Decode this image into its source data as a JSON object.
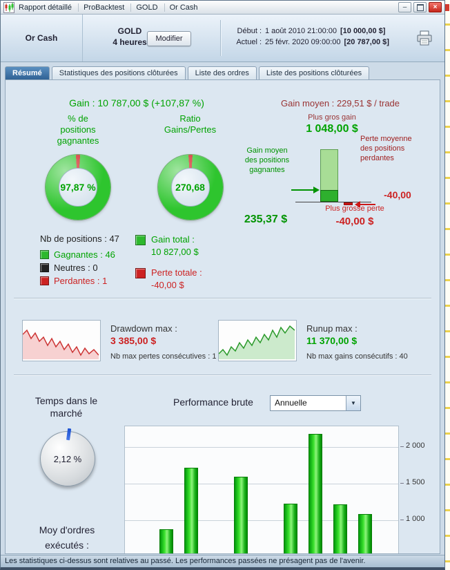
{
  "window": {
    "title_parts": [
      "Rapport détaillé",
      "ProBacktest",
      "GOLD",
      "Or Cash"
    ]
  },
  "icons": {
    "minimize": "–",
    "close": "×",
    "dropdown_arrow": "▼"
  },
  "header": {
    "instrument": "Or Cash",
    "symbol": "GOLD",
    "timeframe": "4 heures",
    "modify_button": "Modifier",
    "start_label": "Début :",
    "start_datetime": "1 août 2010 21:00:00",
    "start_amount": "[10 000,00 $]",
    "current_label": "Actuel :",
    "current_datetime": "25 févr. 2020 09:00:00",
    "current_amount": "[20 787,00 $]"
  },
  "tabs": [
    {
      "label": "Résumé",
      "active": true
    },
    {
      "label": "Statistiques des positions clôturées",
      "active": false
    },
    {
      "label": "Liste des ordres",
      "active": false
    },
    {
      "label": "Liste des positions clôturées",
      "active": false
    }
  ],
  "summary": {
    "gain_label": "Gain :",
    "gain_value": "10 787,00 $ (+107,87 %)",
    "avg_gain_label": "Gain moyen :",
    "avg_gain_value": "229,51 $ / trade",
    "nb_positions": "Nb de positions : 47",
    "legend": [
      {
        "label": "Gagnantes : 46",
        "color": "#2db82d"
      },
      {
        "label": "Neutres : 0",
        "color": "#222222"
      },
      {
        "label": "Perdantes : 1",
        "color": "#cc2222"
      }
    ],
    "gain_total_label": "Gain total :",
    "gain_total_value": "10 827,00 $",
    "perte_totale_label": "Perte totale :",
    "perte_totale_value": "-40,00 $",
    "plus_gros_gain_label": "Plus gros gain",
    "plus_gros_gain_value": "1 048,00 $",
    "gain_moyen_gagnantes_label": "Gain moyen des positions gagnantes",
    "gain_moyen_gagnantes_value": "235,37 $",
    "perte_moyenne_label": "Perte moyenne des positions perdantes",
    "perte_moyenne_value": "-40,00",
    "plus_grosse_perte_label": "Plus grosse perte",
    "plus_grosse_perte_value": "-40,00 $"
  },
  "drawdown": {
    "label": "Drawdown max :",
    "value": "3 385,00 $",
    "sub": "Nb max pertes consécutives : 1"
  },
  "runup": {
    "label": "Runup max :",
    "value": "11 370,00 $",
    "sub": "Nb max gains consécutifs : 40"
  },
  "bottom": {
    "time_in_market_title": "Temps dans le marché",
    "performance_label": "Performance brute",
    "performance_period": "Annuelle",
    "avg_orders_label": "Moy d'ordres exécutés :"
  },
  "status_bar": "Les statistiques ci-dessus sont relatives au passé. Les performances passées ne présagent pas de l'avenir.",
  "chart_data": {
    "winners_donut": {
      "type": "pie",
      "title": "% de positions gagnantes",
      "center_value": "97,87 %",
      "segments": [
        {
          "name": "gagnantes",
          "value": 97.87,
          "color": "#2ec52e"
        },
        {
          "name": "perdantes",
          "value": 2.13,
          "color": "#cc1616"
        }
      ]
    },
    "ratio_donut": {
      "type": "pie",
      "title": "Ratio Gains/Pertes",
      "center_value": "270,68",
      "segments": [
        {
          "name": "gains",
          "value": 98.0,
          "color": "#2ec52e"
        },
        {
          "name": "pertes",
          "value": 2.0,
          "color": "#cc1616"
        }
      ]
    },
    "gain_loss_bars": {
      "type": "bar",
      "bars": [
        {
          "label": "Plus gros gain",
          "value": 1048.0,
          "color": "#a8dd96"
        },
        {
          "label": "Gain moyen des positions gagnantes",
          "value": 235.37,
          "color": "#2eb02e"
        },
        {
          "label": "Plus grosse perte",
          "value": -40.0,
          "color": "#cc1616"
        }
      ]
    },
    "time_in_market_gauge": {
      "type": "gauge",
      "value_pct": 2.12,
      "display": "2,12 %"
    },
    "performance_chart": {
      "type": "bar",
      "title": "Performance brute",
      "period": "Annuelle",
      "values": [
        870,
        1715,
        1595,
        1220,
        2180,
        1210,
        1080
      ],
      "slots": [
        1,
        2,
        4,
        6,
        7,
        8,
        9
      ],
      "total_slots": 11,
      "gridlines": [
        2000,
        1500,
        1000
      ],
      "gridline_labels": [
        "2 000",
        "1 500",
        "1 000"
      ],
      "ylim": [
        532,
        2280
      ],
      "bar_color": "#1ec81e"
    }
  }
}
